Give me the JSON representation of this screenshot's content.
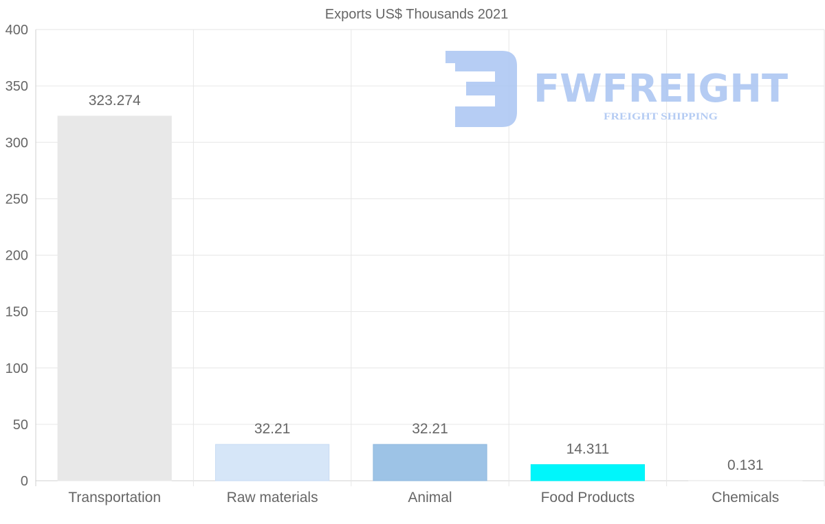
{
  "chart_data": {
    "type": "bar",
    "title": "Exports US$ Thousands 2021",
    "categories": [
      "Transportation",
      "Raw materials",
      "Animal",
      "Food Products",
      "Chemicals"
    ],
    "values": [
      323.274,
      32.21,
      32.21,
      14.311,
      0.131
    ],
    "value_labels": [
      "323.274",
      "32.21",
      "32.21",
      "14.311",
      "0.131"
    ],
    "colors": [
      "#e8e8e8",
      "#d6e6f8",
      "#9dc3e6",
      "#00f6fb",
      "#e8e8e8"
    ],
    "border_colors": [
      "#e8e8e8",
      "#c7dbf3",
      "#8fb8de",
      "#00eef3",
      "#e8e8e8"
    ],
    "ylim": [
      0,
      400
    ],
    "yticks": [
      0,
      50,
      100,
      150,
      200,
      250,
      300,
      350,
      400
    ],
    "xlabel": "",
    "ylabel": "",
    "grid": true,
    "legend": "none"
  },
  "watermark": {
    "brand": "FWFREIGHT",
    "tagline": "FREIGHT SHIPPING",
    "color": "#a9c4f2"
  }
}
